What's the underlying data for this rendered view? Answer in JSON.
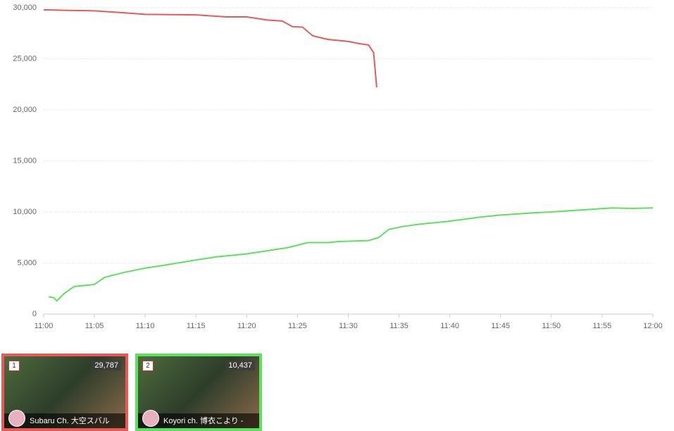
{
  "chart_data": {
    "type": "line",
    "xlim": [
      0,
      60
    ],
    "xticks": [
      {
        "value": 0,
        "label": "11:00"
      },
      {
        "value": 5,
        "label": "11:05"
      },
      {
        "value": 10,
        "label": "11:10"
      },
      {
        "value": 15,
        "label": "11:15"
      },
      {
        "value": 20,
        "label": "11:20"
      },
      {
        "value": 25,
        "label": "11:25"
      },
      {
        "value": 30,
        "label": "11:30"
      },
      {
        "value": 35,
        "label": "11:35"
      },
      {
        "value": 40,
        "label": "11:40"
      },
      {
        "value": 45,
        "label": "11:45"
      },
      {
        "value": 50,
        "label": "11:50"
      },
      {
        "value": 55,
        "label": "11:55"
      },
      {
        "value": 60,
        "label": "12:00"
      }
    ],
    "ylim": [
      0,
      30000
    ],
    "yticks": [
      0,
      {
        "value": 5000,
        "label": "5,000"
      },
      {
        "value": 10000,
        "label": "10,000"
      },
      {
        "value": 15000,
        "label": "15,000"
      },
      {
        "value": 20000,
        "label": "20,000"
      },
      {
        "value": 25000,
        "label": "25,000"
      },
      {
        "value": 30000,
        "label": "30,000"
      }
    ],
    "grid": true,
    "series": [
      {
        "color": "#e85a5a",
        "x": [
          0,
          2,
          5,
          8,
          10,
          15,
          18,
          20,
          22,
          23.5,
          24.5,
          25.5,
          26.5,
          28,
          30,
          31,
          32,
          32.5,
          32.8
        ],
        "values": [
          29800,
          29750,
          29700,
          29500,
          29350,
          29300,
          29100,
          29100,
          28800,
          28700,
          28150,
          28100,
          27250,
          26900,
          26700,
          26500,
          26350,
          25600,
          22200
        ]
      },
      {
        "color": "#5de05d",
        "x": [
          0.5,
          1,
          1.3,
          2,
          3,
          5,
          6,
          8,
          10,
          12,
          15,
          17,
          20,
          22,
          24,
          26,
          28,
          29,
          32,
          33,
          34,
          35.5,
          37,
          40,
          43,
          45,
          48,
          50,
          53,
          56,
          58,
          60
        ],
        "values": [
          1700,
          1600,
          1300,
          2000,
          2700,
          2900,
          3600,
          4100,
          4500,
          4800,
          5300,
          5600,
          5900,
          6200,
          6500,
          7000,
          7000,
          7100,
          7200,
          7500,
          8300,
          8600,
          8800,
          9100,
          9500,
          9700,
          9900,
          10000,
          10200,
          10400,
          10350,
          10400
        ]
      }
    ]
  },
  "cards": [
    {
      "rank": "1",
      "viewers": "29,787",
      "name": "Subaru Ch. 大空スバル",
      "color": "#e85a5a"
    },
    {
      "rank": "2",
      "viewers": "10,437",
      "name": "Koyori ch. 博衣こより -",
      "color": "#5de05d"
    }
  ]
}
